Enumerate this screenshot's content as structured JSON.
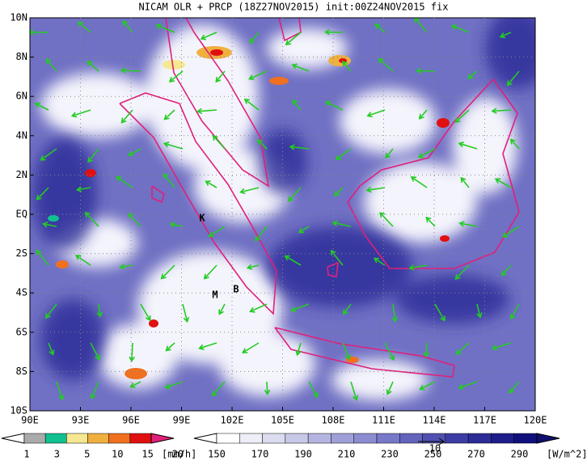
{
  "header": {
    "title": "NICAM OLR + PRCP (18Z27NOV2015) init:00Z24NOV2015 fix"
  },
  "map": {
    "lat_labels": [
      "10N",
      "8N",
      "6N",
      "4N",
      "2N",
      "EQ",
      "2S",
      "4S",
      "6S",
      "8S",
      "10S"
    ],
    "lon_labels": [
      "90E",
      "93E",
      "96E",
      "99E",
      "102E",
      "105E",
      "108E",
      "111E",
      "114E",
      "117E",
      "120E"
    ],
    "place_labels": [
      "K",
      "M",
      "B"
    ]
  },
  "precip_legend": {
    "ticks": [
      1,
      3,
      5,
      10,
      15,
      20
    ],
    "unit": "[mm/h]",
    "colors": [
      "#aaaaaa",
      "#10c090",
      "#f5e890",
      "#f0b040",
      "#f07020",
      "#e01010"
    ]
  },
  "olr_legend": {
    "ticks": [
      150,
      170,
      190,
      210,
      230,
      250,
      270,
      290
    ],
    "unit": "[W/m^2]",
    "vector_label": "10",
    "colors": [
      "#ffffff",
      "#eeeef8",
      "#dcdcf0",
      "#c8c8e8",
      "#b4b4e0",
      "#a0a0d8",
      "#8c8cd0",
      "#7878c8",
      "#6464bc",
      "#5050b0",
      "#3c3ca4",
      "#2c2c98",
      "#1e1e8a",
      "#10107c"
    ]
  }
}
